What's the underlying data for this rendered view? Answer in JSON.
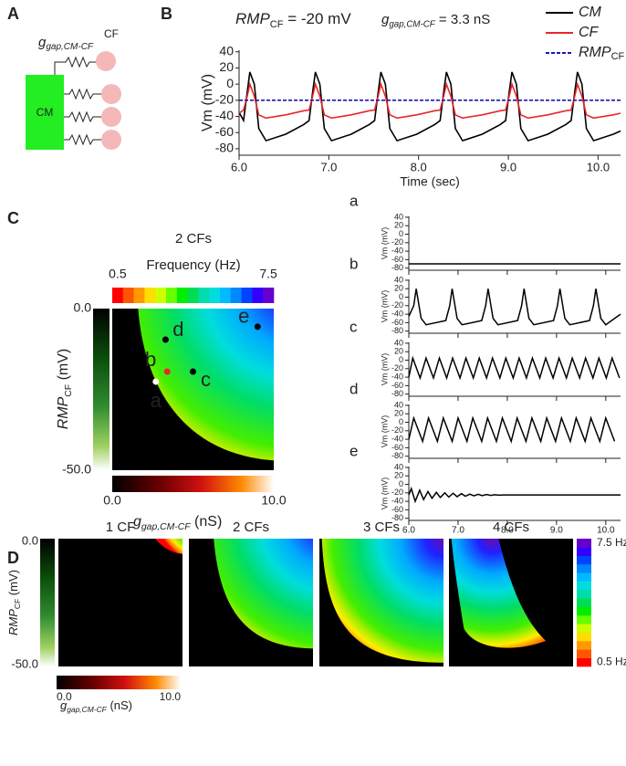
{
  "panel_labels": [
    "A",
    "B",
    "C",
    "D"
  ],
  "schematic": {
    "gap_label": {
      "main": "g",
      "sub": "gap,CM-CF"
    },
    "cf_label": "CF",
    "cm_label": "CM"
  },
  "chart_data": [
    {
      "type": "line",
      "annotations": [
        {
          "main": "RMP",
          "sub": "CF",
          "rest": " = -20 mV"
        },
        {
          "main": "g",
          "sub": "gap,CM-CF",
          "rest": " = 3.3 nS"
        }
      ],
      "xlabel": "Time (sec)",
      "ylabel": "Vm (mV)",
      "xlim": [
        6.0,
        10.25
      ],
      "ylim": [
        -88,
        42
      ],
      "xticks": [
        {
          "value": 6,
          "label": "6.0"
        },
        {
          "value": 7,
          "label": "7.0"
        },
        {
          "value": 8,
          "label": "8.0"
        },
        {
          "value": 9,
          "label": "9.0"
        },
        {
          "value": 10,
          "label": "10.0"
        }
      ],
      "yticks": [
        40,
        20,
        0,
        -20,
        -40,
        -60,
        -80
      ],
      "x": [
        6.0,
        6.05,
        6.09,
        6.12,
        6.17,
        6.22,
        6.3,
        6.52,
        6.72,
        6.78,
        6.82,
        6.85,
        6.9,
        6.95,
        7.03,
        7.25,
        7.45,
        7.51,
        7.55,
        7.58,
        7.63,
        7.68,
        7.76,
        7.98,
        8.18,
        8.24,
        8.28,
        8.31,
        8.36,
        8.41,
        8.49,
        8.71,
        8.91,
        8.97,
        9.01,
        9.04,
        9.09,
        9.14,
        9.22,
        9.44,
        9.64,
        9.7,
        9.74,
        9.77,
        9.82,
        9.87,
        9.95,
        10.17,
        10.25
      ],
      "series": [
        {
          "name": "CM",
          "color": "#000000",
          "values": [
            -35,
            -45,
            -10,
            15,
            0,
            -55,
            -70,
            -62,
            -50,
            -45,
            -10,
            15,
            0,
            -55,
            -70,
            -62,
            -50,
            -45,
            -10,
            15,
            0,
            -55,
            -70,
            -62,
            -50,
            -45,
            -10,
            15,
            0,
            -55,
            -70,
            -62,
            -50,
            -45,
            -10,
            15,
            0,
            -55,
            -70,
            -62,
            -50,
            -45,
            -10,
            15,
            0,
            -55,
            -70,
            -62,
            -58
          ]
        },
        {
          "name": "CF",
          "color": "#e8262a",
          "values": [
            -36,
            -32,
            -15,
            0,
            -15,
            -38,
            -42,
            -38,
            -33,
            -32,
            -15,
            0,
            -15,
            -38,
            -42,
            -38,
            -33,
            -32,
            -15,
            0,
            -15,
            -38,
            -42,
            -38,
            -33,
            -32,
            -15,
            0,
            -15,
            -38,
            -42,
            -38,
            -33,
            -32,
            -15,
            0,
            -15,
            -38,
            -42,
            -38,
            -33,
            -32,
            -15,
            0,
            -15,
            -38,
            -42,
            -38,
            -36
          ]
        },
        {
          "name": "RMP",
          "name_sub": "CF",
          "color": "#1a1aa8",
          "dashed": true,
          "x": [
            6.0,
            10.25
          ],
          "values": [
            -20,
            -20
          ]
        }
      ]
    },
    {
      "type": "heatmap",
      "title": "2 CFs",
      "colorbar_label": "Frequency (Hz)",
      "colorbar_ticks": [
        0.5,
        7.5
      ],
      "xlabel": {
        "main": "g",
        "sub": "gap,CM-CF",
        "rest": " (nS)"
      },
      "ylabel": {
        "main": "RMP",
        "sub": "CF",
        "rest": " (mV)"
      },
      "xlim": [
        0,
        10
      ],
      "ylim": [
        -50,
        0
      ],
      "xticks": [
        {
          "value": 0,
          "label": "0.0"
        },
        {
          "value": 10,
          "label": "10.0"
        }
      ],
      "yticks": [
        {
          "value": 0,
          "label": "0.0"
        },
        {
          "value": -50,
          "label": "-50.0"
        }
      ],
      "points": [
        {
          "label": "a",
          "x": 2.7,
          "y": -22.6,
          "color": "#ffffff",
          "label_color": "#ffffff"
        },
        {
          "label": "b",
          "x": 3.4,
          "y": -19.5,
          "color": "#e8262a",
          "label_color": "#ffffff"
        },
        {
          "label": "c",
          "x": 5.0,
          "y": -19.5,
          "color": "#000000",
          "label_color": "#000000"
        },
        {
          "label": "d",
          "x": 3.3,
          "y": -9.6,
          "color": "#000000",
          "label_color": "#000000"
        },
        {
          "label": "e",
          "x": 9.0,
          "y": -5.6,
          "color": "#000000",
          "label_color": "#000000"
        }
      ]
    },
    {
      "type": "line",
      "label": "a",
      "ylabel": "Vm (mV)",
      "xlim": [
        6.0,
        10.3
      ],
      "ylim": [
        -85,
        42
      ],
      "xticks": [
        6,
        7,
        8,
        9,
        10
      ],
      "xtick_labels": false,
      "yticks": [
        40,
        20,
        0,
        -20,
        -40,
        -60,
        -80
      ],
      "x": [
        6.0,
        10.3
      ],
      "series": [
        {
          "color": "#000000",
          "values": [
            -70,
            -70
          ]
        }
      ]
    },
    {
      "type": "line",
      "label": "b",
      "ylabel": "Vm (mV)",
      "xlim": [
        6.0,
        10.3
      ],
      "ylim": [
        -85,
        42
      ],
      "xticks": [
        6,
        7,
        8,
        9,
        10
      ],
      "xtick_labels": false,
      "yticks": [
        40,
        20,
        0,
        -20,
        -40,
        -60,
        -80
      ],
      "x": [
        6.0,
        6.1,
        6.15,
        6.25,
        6.35,
        6.75,
        6.83,
        6.88,
        6.98,
        7.08,
        7.48,
        7.56,
        7.61,
        7.71,
        7.81,
        8.21,
        8.29,
        8.34,
        8.44,
        8.54,
        8.94,
        9.02,
        9.07,
        9.17,
        9.27,
        9.67,
        9.75,
        9.8,
        9.9,
        10.0,
        10.3
      ],
      "series": [
        {
          "color": "#000000",
          "values": [
            -45,
            -20,
            20,
            -50,
            -65,
            -55,
            -20,
            20,
            -50,
            -65,
            -55,
            -20,
            20,
            -50,
            -65,
            -55,
            -20,
            20,
            -50,
            -65,
            -55,
            -20,
            20,
            -50,
            -65,
            -55,
            -20,
            20,
            -50,
            -65,
            -40
          ]
        }
      ]
    },
    {
      "type": "line",
      "label": "c",
      "ylabel": "Vm (mV)",
      "xlim": [
        6.0,
        10.3
      ],
      "ylim": [
        -85,
        42
      ],
      "xticks": [
        6,
        7,
        8,
        9,
        10
      ],
      "xtick_labels": false,
      "yticks": [
        40,
        20,
        0,
        -20,
        -40,
        -60,
        -80
      ],
      "x": [
        6.0,
        6.08,
        6.23,
        6.35,
        6.5,
        6.62,
        6.77,
        6.89,
        7.04,
        7.16,
        7.31,
        7.43,
        7.58,
        7.7,
        7.85,
        7.97,
        8.12,
        8.24,
        8.39,
        8.51,
        8.66,
        8.78,
        8.93,
        9.05,
        9.2,
        9.32,
        9.47,
        9.59,
        9.74,
        9.86,
        10.01,
        10.13,
        10.28
      ],
      "series": [
        {
          "color": "#000000",
          "values": [
            -40,
            5,
            -42,
            5,
            -42,
            5,
            -42,
            5,
            -42,
            5,
            -42,
            5,
            -42,
            5,
            -42,
            5,
            -42,
            5,
            -42,
            5,
            -42,
            5,
            -42,
            5,
            -42,
            5,
            -42,
            5,
            -42,
            5,
            -42,
            5,
            -42
          ]
        }
      ]
    },
    {
      "type": "line",
      "label": "d",
      "ylabel": "Vm (mV)",
      "xlim": [
        6.0,
        10.3
      ],
      "ylim": [
        -85,
        42
      ],
      "xticks": [
        6,
        7,
        8,
        9,
        10
      ],
      "xtick_labels": false,
      "yticks": [
        40,
        20,
        0,
        -20,
        -40,
        -60,
        -80
      ],
      "x": [
        6.0,
        6.1,
        6.28,
        6.4,
        6.58,
        6.7,
        6.88,
        7.0,
        7.18,
        7.3,
        7.48,
        7.6,
        7.78,
        7.9,
        8.08,
        8.2,
        8.38,
        8.5,
        8.68,
        8.8,
        8.98,
        9.1,
        9.28,
        9.4,
        9.58,
        9.7,
        9.88,
        10.0,
        10.18
      ],
      "series": [
        {
          "color": "#000000",
          "values": [
            -40,
            10,
            -45,
            10,
            -45,
            10,
            -45,
            10,
            -45,
            10,
            -45,
            10,
            -45,
            10,
            -45,
            10,
            -45,
            10,
            -45,
            10,
            -45,
            10,
            -45,
            10,
            -45,
            10,
            -45,
            10,
            -45
          ]
        }
      ]
    },
    {
      "type": "line",
      "label": "e",
      "ylabel": "Vm (mV)",
      "xlabel": "Time (sec)",
      "xlim": [
        6.0,
        10.3
      ],
      "ylim": [
        -85,
        42
      ],
      "xticks": [
        {
          "value": 6,
          "label": "6.0"
        },
        {
          "value": 7,
          "label": "7.0"
        },
        {
          "value": 8,
          "label": "8.0"
        },
        {
          "value": 9,
          "label": "9.0"
        },
        {
          "value": 10,
          "label": "10.0"
        }
      ],
      "yticks": [
        40,
        20,
        0,
        -20,
        -40,
        -60,
        -80
      ],
      "x": [
        6.0,
        6.05,
        6.13,
        6.22,
        6.3,
        6.39,
        6.47,
        6.56,
        6.64,
        6.73,
        6.81,
        6.9,
        6.98,
        7.07,
        7.15,
        7.24,
        7.32,
        7.41,
        7.49,
        7.58,
        7.66,
        7.75,
        7.83,
        7.92,
        8.0,
        10.3
      ],
      "series": [
        {
          "color": "#000000",
          "values": [
            -25,
            -10,
            -40,
            -14,
            -36,
            -17,
            -33,
            -19,
            -31,
            -20,
            -30,
            -21,
            -29,
            -22,
            -28,
            -23,
            -27,
            -23.5,
            -26.5,
            -24,
            -26,
            -24.5,
            -25.5,
            -25,
            -25,
            -25
          ]
        }
      ]
    },
    {
      "type": "heatmap-grid",
      "titles": [
        "1 CF",
        "2 CFs",
        "3 CFs",
        "4 CFs"
      ],
      "xlabel": {
        "main": "g",
        "sub": "gap,CM-CF",
        "rest": " (nS)"
      },
      "ylabel": {
        "main": "RMP",
        "sub": "CF",
        "rest": " (mV)"
      },
      "xlim": [
        0,
        10
      ],
      "ylim": [
        -50,
        0
      ],
      "xticks": [
        {
          "value": 0,
          "label": "0.0"
        },
        {
          "value": 10,
          "label": "10.0"
        }
      ],
      "yticks": [
        {
          "value": 0,
          "label": "0.0"
        },
        {
          "value": -50,
          "label": "-50.0"
        }
      ],
      "colorbar_lim": [
        0.5,
        7.5
      ],
      "colorbar_ticks": [
        {
          "value": 7.5,
          "label": "7.5 Hz"
        },
        {
          "value": 0.5,
          "label": "0.5 Hz"
        }
      ]
    }
  ]
}
